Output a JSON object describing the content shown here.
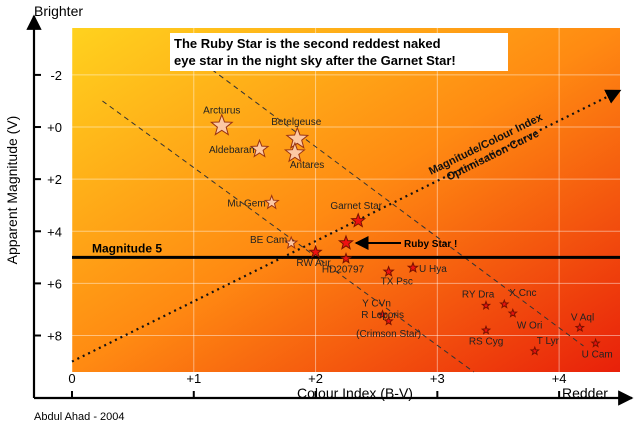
{
  "chart_data": {
    "type": "scatter",
    "title_lines": [
      "The Ruby Star is the second reddest naked",
      "eye star in the night sky after the Garnet Star!"
    ],
    "y_axis_label": "Apparent Magnitude (V)",
    "x_axis_label": "Colour Index (B-V)",
    "y_top_label": "Brighter",
    "x_right_label": "Redder",
    "credit": "Abdul Ahad - 2004",
    "x_range": [
      0,
      4.5
    ],
    "y_range": [
      -3.8,
      9.4
    ],
    "y_inverted": true,
    "x_ticks": [
      {
        "value": 0,
        "label": "0"
      },
      {
        "value": 1,
        "label": "+1"
      },
      {
        "value": 2,
        "label": "+2"
      },
      {
        "value": 3,
        "label": "+3"
      },
      {
        "value": 4,
        "label": "+4"
      }
    ],
    "y_ticks": [
      {
        "value": -2,
        "label": "-2"
      },
      {
        "value": 0,
        "label": "+0"
      },
      {
        "value": 2,
        "label": "+2"
      },
      {
        "value": 4,
        "label": "+4"
      },
      {
        "value": 6,
        "label": "+6"
      },
      {
        "value": 8,
        "label": "+8"
      }
    ],
    "reference_line": {
      "label": "Magnitude 5",
      "y": 5
    },
    "curve": {
      "label_lines": [
        "Magnitude/Colour Index",
        "Optimisation Curve"
      ],
      "from": [
        0,
        9.0
      ],
      "to": [
        4.5,
        -1.4
      ]
    },
    "dashed_bounds": [
      {
        "from": [
          0.25,
          -1.0
        ],
        "to": [
          3.3,
          9.4
        ]
      },
      {
        "from": [
          1.15,
          -2.2
        ],
        "to": [
          4.2,
          8.4
        ]
      }
    ],
    "annotation": {
      "label": "Ruby Star !",
      "target": "HD207076"
    },
    "stars": [
      {
        "name": "Arcturus",
        "bv": 1.23,
        "mag": -0.05,
        "type": "open",
        "size": 11
      },
      {
        "name": "Betelgeuse",
        "bv": 1.85,
        "mag": 0.45,
        "type": "open",
        "size": 11
      },
      {
        "name": "Aldebaran",
        "bv": 1.54,
        "mag": 0.85,
        "type": "open",
        "size": 9
      },
      {
        "name": "Antares",
        "bv": 1.83,
        "mag": 1.0,
        "type": "open",
        "size": 10
      },
      {
        "name": "Mu Gem",
        "bv": 1.64,
        "mag": 2.9,
        "type": "open",
        "size": 7
      },
      {
        "name": "BE Cam",
        "bv": 1.8,
        "mag": 4.45,
        "type": "open",
        "size": 6
      },
      {
        "name": "Garnet Star",
        "bv": 2.35,
        "mag": 3.6,
        "type": "filled",
        "size": 7
      },
      {
        "name": "RW Aur",
        "bv": 2.0,
        "mag": 4.8,
        "type": "filled",
        "size": 6
      },
      {
        "name": "HD207076",
        "bv": 2.25,
        "mag": 4.45,
        "type": "filled",
        "size": 7
      },
      {
        "name": "HD20797",
        "bv": 2.25,
        "mag": 5.05,
        "type": "filled",
        "size": 5
      },
      {
        "name": "TX Psc",
        "bv": 2.6,
        "mag": 5.55,
        "type": "filled",
        "size": 5
      },
      {
        "name": "U Hya",
        "bv": 2.8,
        "mag": 5.4,
        "type": "filled",
        "size": 5
      },
      {
        "name": "Y CVn",
        "bv": 2.55,
        "mag": 7.2,
        "type": "filled",
        "size": 4
      },
      {
        "name": "R Leporis",
        "bv": 2.6,
        "mag": 7.45,
        "type": "filled",
        "size": 4
      },
      {
        "name": "(Crimson Star)",
        "bv": 2.6,
        "mag": 8.05,
        "type": "label",
        "size": 0
      },
      {
        "name": "RY Dra",
        "bv": 3.4,
        "mag": 6.85,
        "type": "filled",
        "size": 4
      },
      {
        "name": "X Cnc",
        "bv": 3.55,
        "mag": 6.8,
        "type": "filled",
        "size": 4
      },
      {
        "name": "W Ori",
        "bv": 3.62,
        "mag": 7.15,
        "type": "filled",
        "size": 4
      },
      {
        "name": "RS Cyg",
        "bv": 3.4,
        "mag": 7.8,
        "type": "filled",
        "size": 4
      },
      {
        "name": "T Lyr",
        "bv": 3.8,
        "mag": 8.6,
        "type": "filled",
        "size": 4
      },
      {
        "name": "V Aql",
        "bv": 4.17,
        "mag": 7.7,
        "type": "filled",
        "size": 4
      },
      {
        "name": "U Cam",
        "bv": 4.3,
        "mag": 8.3,
        "type": "filled",
        "size": 4
      }
    ]
  }
}
